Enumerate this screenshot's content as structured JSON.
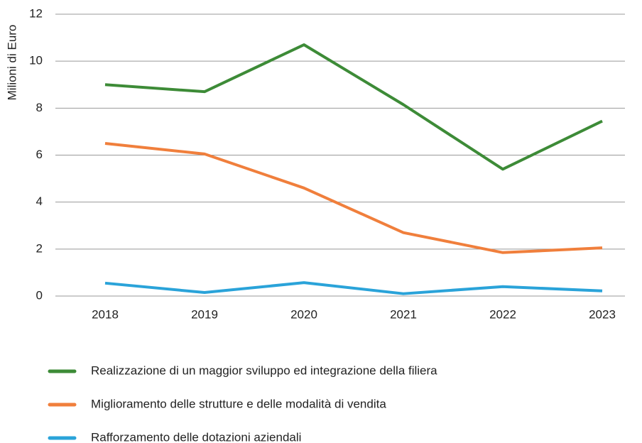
{
  "chart_data": {
    "type": "line",
    "y_label": "Milioni di Euro",
    "categories": [
      "2018",
      "2019",
      "2020",
      "2021",
      "2022",
      "2023"
    ],
    "series": [
      {
        "name": "Realizzazione di un maggior sviluppo ed integrazione della filiera",
        "color": "#3d8b37",
        "values": [
          9.0,
          8.7,
          10.7,
          8.15,
          5.4,
          7.45
        ]
      },
      {
        "name": "Miglioramento delle strutture e delle modalità di vendita",
        "color": "#f07f3c",
        "values": [
          6.5,
          6.05,
          4.6,
          2.7,
          1.85,
          2.05
        ]
      },
      {
        "name": "Rafforzamento delle dotazioni aziendali",
        "color": "#2aa3d9",
        "values": [
          0.55,
          0.15,
          0.57,
          0.1,
          0.4,
          0.22
        ]
      }
    ],
    "ylim": [
      0,
      12
    ],
    "yticks": [
      0,
      2,
      4,
      6,
      8,
      10,
      12
    ],
    "grid": true,
    "legend": "bottom"
  }
}
